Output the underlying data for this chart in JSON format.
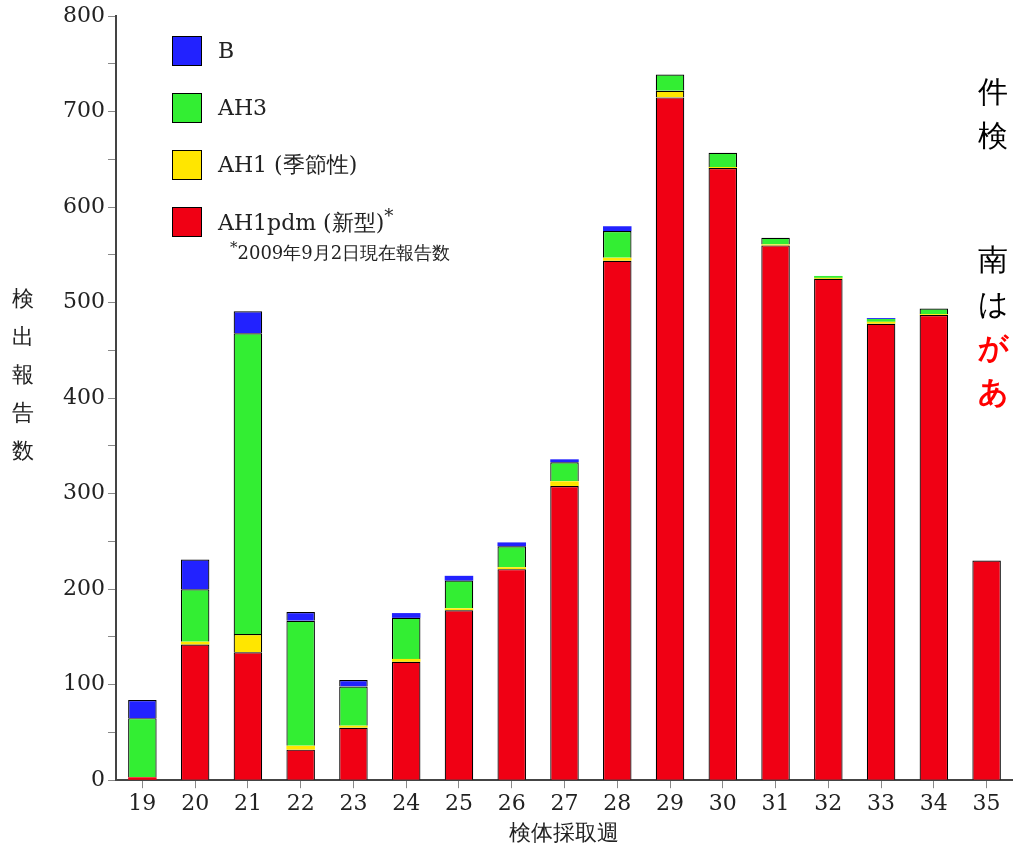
{
  "chart_data": {
    "type": "bar",
    "stacked": true,
    "xlabel": "検体採取週",
    "ylabel": "検出報告数",
    "categories": [
      "19",
      "20",
      "21",
      "22",
      "23",
      "24",
      "25",
      "26",
      "27",
      "28",
      "29",
      "30",
      "31",
      "32",
      "33",
      "34",
      "35"
    ],
    "series": [
      {
        "name": "AH1pdm (新型)$^{*}$",
        "color": "#f00014",
        "values": [
          3,
          142,
          134,
          32,
          55,
          124,
          178,
          221,
          308,
          544,
          715,
          641,
          560,
          525,
          478,
          487,
          230
        ]
      },
      {
        "name": "AH1 (季節性)",
        "color": "#ffe600",
        "values": [
          0,
          3,
          19,
          4,
          2,
          3,
          2,
          2,
          5,
          3,
          7,
          1,
          1,
          1,
          2,
          1,
          0
        ]
      },
      {
        "name": "AH3",
        "color": "#33ee33",
        "values": [
          62,
          55,
          315,
          131,
          41,
          43,
          29,
          22,
          20,
          28,
          17,
          15,
          7,
          2,
          3,
          6,
          0
        ]
      },
      {
        "name": "B",
        "color": "#2222ff",
        "values": [
          19,
          31,
          23,
          9,
          7,
          5,
          5,
          4,
          3,
          5,
          0,
          0,
          0,
          0,
          1,
          0,
          0
        ]
      }
    ],
    "ylim": [
      0,
      800
    ],
    "yticks": [
      0,
      {
        "value": 50,
        "label": null
      },
      100,
      {
        "value": 150,
        "label": null
      },
      200,
      {
        "value": 250,
        "label": null
      },
      300,
      {
        "value": 350,
        "label": null
      },
      400,
      {
        "value": 450,
        "label": null
      },
      500,
      {
        "value": 550,
        "label": null
      },
      600,
      {
        "value": 650,
        "label": null
      },
      700,
      {
        "value": 750,
        "label": null
      },
      800
    ],
    "grid": false,
    "legend": "top left",
    "annotations": [
      "$^{*}$2009年9月2日現在報告数",
      "件",
      "検",
      "南",
      "は",
      "が",
      "あ"
    ]
  }
}
